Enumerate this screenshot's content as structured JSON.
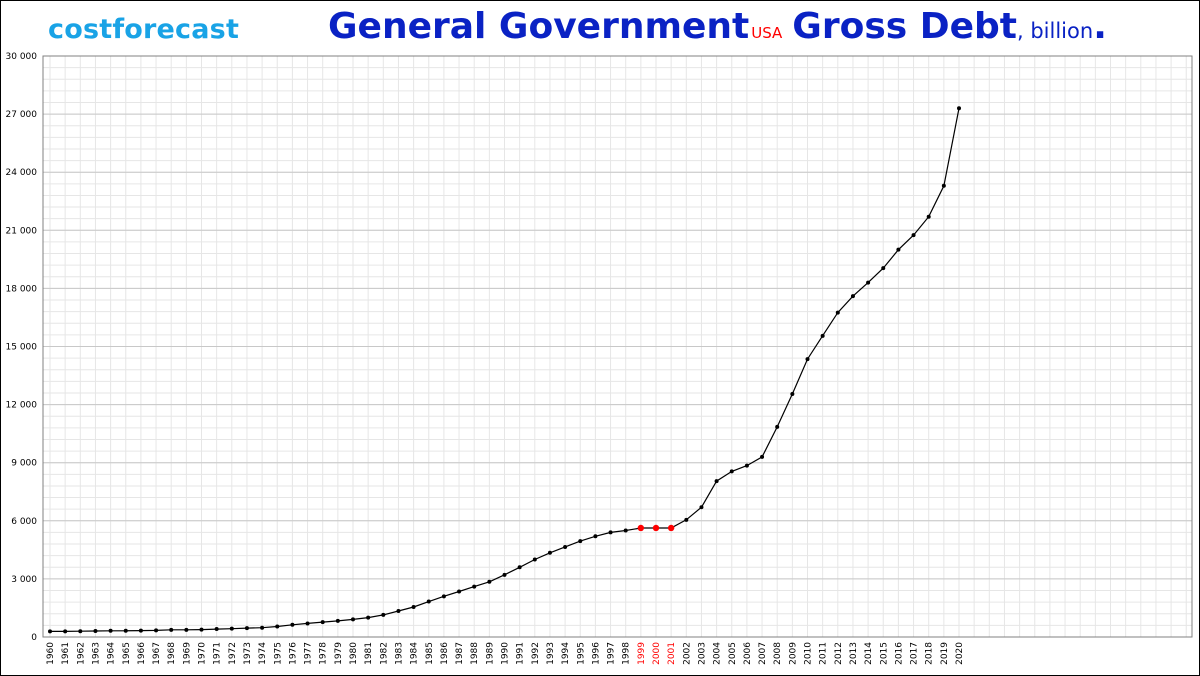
{
  "brand": {
    "name": "costforecast",
    "color": "#19a3e6"
  },
  "header": {
    "title_main": "General Government",
    "title_country": "USA",
    "title_rest": "Gross Debt",
    "title_unit": ", billion",
    "title_dot": ".",
    "title_color": "#0a22c4",
    "country_color": "#ff0000"
  },
  "chart_data": {
    "type": "line",
    "title": "General GovernmentUSA Gross Debt, billion.",
    "xlabel": "",
    "ylabel": "",
    "ylim": [
      0,
      30000
    ],
    "yticks": [
      0,
      3000,
      6000,
      9000,
      12000,
      15000,
      18000,
      21000,
      24000,
      27000,
      30000
    ],
    "ytick_labels": [
      "0",
      "3 000",
      "6 000",
      "9 000",
      "12 000",
      "15 000",
      "18 000",
      "21 000",
      "24 000",
      "27 000",
      "30 000"
    ],
    "grid": true,
    "line_color": "#000000",
    "highlight_color": "#ff0000",
    "highlight_years": [
      1999,
      2000,
      2001
    ],
    "x": [
      1960,
      1961,
      1962,
      1963,
      1964,
      1965,
      1966,
      1967,
      1968,
      1969,
      1970,
      1971,
      1972,
      1973,
      1974,
      1975,
      1976,
      1977,
      1978,
      1979,
      1980,
      1981,
      1982,
      1983,
      1984,
      1985,
      1986,
      1987,
      1988,
      1989,
      1990,
      1991,
      1992,
      1993,
      1994,
      1995,
      1996,
      1997,
      1998,
      1999,
      2000,
      2001,
      2002,
      2003,
      2004,
      2005,
      2006,
      2007,
      2008,
      2009,
      2010,
      2011,
      2012,
      2013,
      2014,
      2015,
      2016,
      2017,
      2018,
      2019,
      2020
    ],
    "series": [
      {
        "values": [
          290,
          290,
          300,
          310,
          320,
          320,
          330,
          340,
          370,
          370,
          380,
          410,
          430,
          460,
          480,
          540,
          630,
          700,
          770,
          830,
          910,
          1000,
          1140,
          1340,
          1550,
          1830,
          2100,
          2350,
          2600,
          2850,
          3210,
          3600,
          4000,
          4350,
          4650,
          4950,
          5200,
          5400,
          5500,
          5630,
          5630,
          5630,
          6050,
          6700,
          8050,
          8550,
          8850,
          9300,
          10850,
          12550,
          14350,
          15550,
          16750,
          17600,
          18300,
          19050,
          20000,
          20750,
          21700,
          23300,
          27300
        ]
      }
    ]
  }
}
